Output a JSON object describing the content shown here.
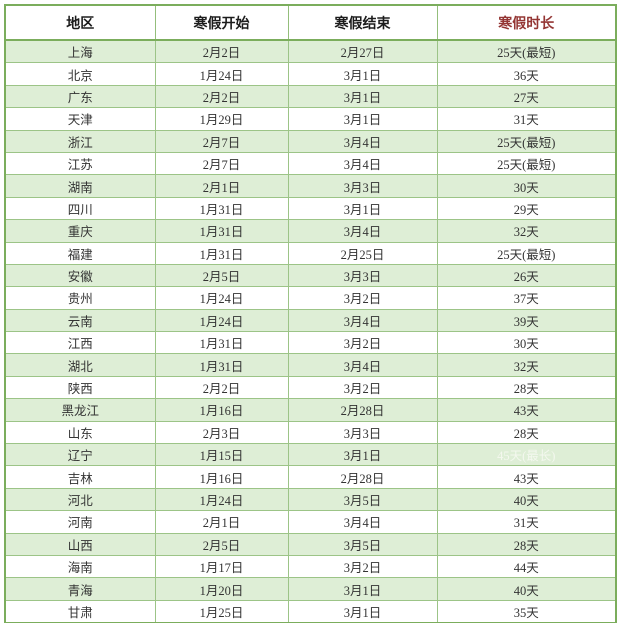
{
  "colors": {
    "outer_border_green": "#7bad5c",
    "inner_border_green": "#9cc487",
    "row_stripe_green": "#deeed6",
    "duration_header_red": "#943634",
    "faint_duration_text": "#f4f8ef",
    "cell_text": "#333333"
  },
  "chart_data": {
    "type": "table",
    "title": "",
    "columns": [
      "地区",
      "寒假开始",
      "寒假结束",
      "寒假时长"
    ],
    "rows": [
      {
        "region": "上海",
        "start": "2月2日",
        "end": "2月27日",
        "duration": "25天(最短)"
      },
      {
        "region": "北京",
        "start": "1月24日",
        "end": "3月1日",
        "duration": "36天"
      },
      {
        "region": "广东",
        "start": "2月2日",
        "end": "3月1日",
        "duration": "27天"
      },
      {
        "region": "天津",
        "start": "1月29日",
        "end": "3月1日",
        "duration": "31天"
      },
      {
        "region": "浙江",
        "start": "2月7日",
        "end": "3月4日",
        "duration": "25天(最短)"
      },
      {
        "region": "江苏",
        "start": "2月7日",
        "end": "3月4日",
        "duration": "25天(最短)"
      },
      {
        "region": "湖南",
        "start": "2月1日",
        "end": "3月3日",
        "duration": "30天"
      },
      {
        "region": "四川",
        "start": "1月31日",
        "end": "3月1日",
        "duration": "29天"
      },
      {
        "region": "重庆",
        "start": "1月31日",
        "end": "3月4日",
        "duration": "32天"
      },
      {
        "region": "福建",
        "start": "1月31日",
        "end": "2月25日",
        "duration": "25天(最短)"
      },
      {
        "region": "安徽",
        "start": "2月5日",
        "end": "3月3日",
        "duration": "26天"
      },
      {
        "region": "贵州",
        "start": "1月24日",
        "end": "3月2日",
        "duration": "37天"
      },
      {
        "region": "云南",
        "start": "1月24日",
        "end": "3月4日",
        "duration": "39天"
      },
      {
        "region": "江西",
        "start": "1月31日",
        "end": "3月2日",
        "duration": "30天"
      },
      {
        "region": "湖北",
        "start": "1月31日",
        "end": "3月4日",
        "duration": "32天"
      },
      {
        "region": "陕西",
        "start": "2月2日",
        "end": "3月2日",
        "duration": "28天"
      },
      {
        "region": "黑龙江",
        "start": "1月16日",
        "end": "2月28日",
        "duration": "43天"
      },
      {
        "region": "山东",
        "start": "2月3日",
        "end": "3月3日",
        "duration": "28天"
      },
      {
        "region": "辽宁",
        "start": "1月15日",
        "end": "3月1日",
        "duration": "45天(最长)",
        "duration_faint": true
      },
      {
        "region": "吉林",
        "start": "1月16日",
        "end": "2月28日",
        "duration": "43天"
      },
      {
        "region": "河北",
        "start": "1月24日",
        "end": "3月5日",
        "duration": "40天"
      },
      {
        "region": "河南",
        "start": "2月1日",
        "end": "3月4日",
        "duration": "31天"
      },
      {
        "region": "山西",
        "start": "2月5日",
        "end": "3月5日",
        "duration": "28天"
      },
      {
        "region": "海南",
        "start": "1月17日",
        "end": "3月2日",
        "duration": "44天"
      },
      {
        "region": "青海",
        "start": "1月20日",
        "end": "3月1日",
        "duration": "40天"
      },
      {
        "region": "甘肃",
        "start": "1月25日",
        "end": "3月1日",
        "duration": "35天"
      }
    ]
  }
}
